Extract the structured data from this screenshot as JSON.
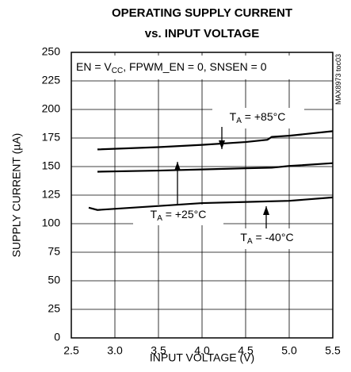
{
  "chart_data": {
    "type": "line",
    "title": [
      "OPERATING SUPPLY CURRENT",
      "vs. INPUT VOLTAGE"
    ],
    "x_label": "INPUT VOLTAGE (V)",
    "y_label": "SUPPLY CURRENT (µA)",
    "xlim": [
      2.5,
      5.5
    ],
    "ylim": [
      0,
      250
    ],
    "xticks": [
      2.5,
      {
        "value": 3,
        "label": "3.0"
      },
      3.5,
      {
        "value": 4,
        "label": "4.0"
      },
      4.5,
      {
        "value": 5,
        "label": "5.0"
      },
      5.5
    ],
    "yticks": [
      0,
      25,
      50,
      75,
      100,
      125,
      150,
      175,
      200,
      225,
      250
    ],
    "grid": true,
    "series": [
      {
        "color": "#000000",
        "x": [
          2.8,
          3.5,
          4.0,
          4.5,
          4.75,
          4.8,
          5.0,
          5.5
        ],
        "values": [
          165,
          167,
          169,
          171.5,
          173.5,
          176,
          177,
          181
        ]
      },
      {
        "color": "#000000",
        "x": [
          2.8,
          3.5,
          4.0,
          4.5,
          4.8,
          5.0,
          5.5
        ],
        "values": [
          145.5,
          146.5,
          147.5,
          148.5,
          149,
          150.5,
          153
        ]
      },
      {
        "color": "#000000",
        "x": [
          2.7,
          2.8,
          3.5,
          4.0,
          4.5,
          5.0,
          5.5
        ],
        "values": [
          114,
          112,
          115.5,
          118,
          119,
          120,
          123
        ]
      }
    ],
    "annotations": [
      {
        "runs": [
          {
            "text": "EN = V"
          },
          {
            "text": "CC",
            "sub": true
          },
          {
            "text": ", FPWM_EN = 0, SNSEN = 0"
          }
        ]
      },
      {
        "runs": [
          {
            "text": "T"
          },
          {
            "text": "A",
            "sub": true
          },
          {
            "text": " = +85°C"
          }
        ]
      },
      {
        "runs": [
          {
            "text": "T"
          },
          {
            "text": "A",
            "sub": true
          },
          {
            "text": " = +25°C"
          }
        ]
      },
      {
        "runs": [
          {
            "text": "T"
          },
          {
            "text": "A",
            "sub": true
          },
          {
            "text": " = -40°C"
          }
        ]
      },
      {
        "runs": [
          {
            "text": "MAX8973 toc03"
          }
        ]
      }
    ]
  }
}
